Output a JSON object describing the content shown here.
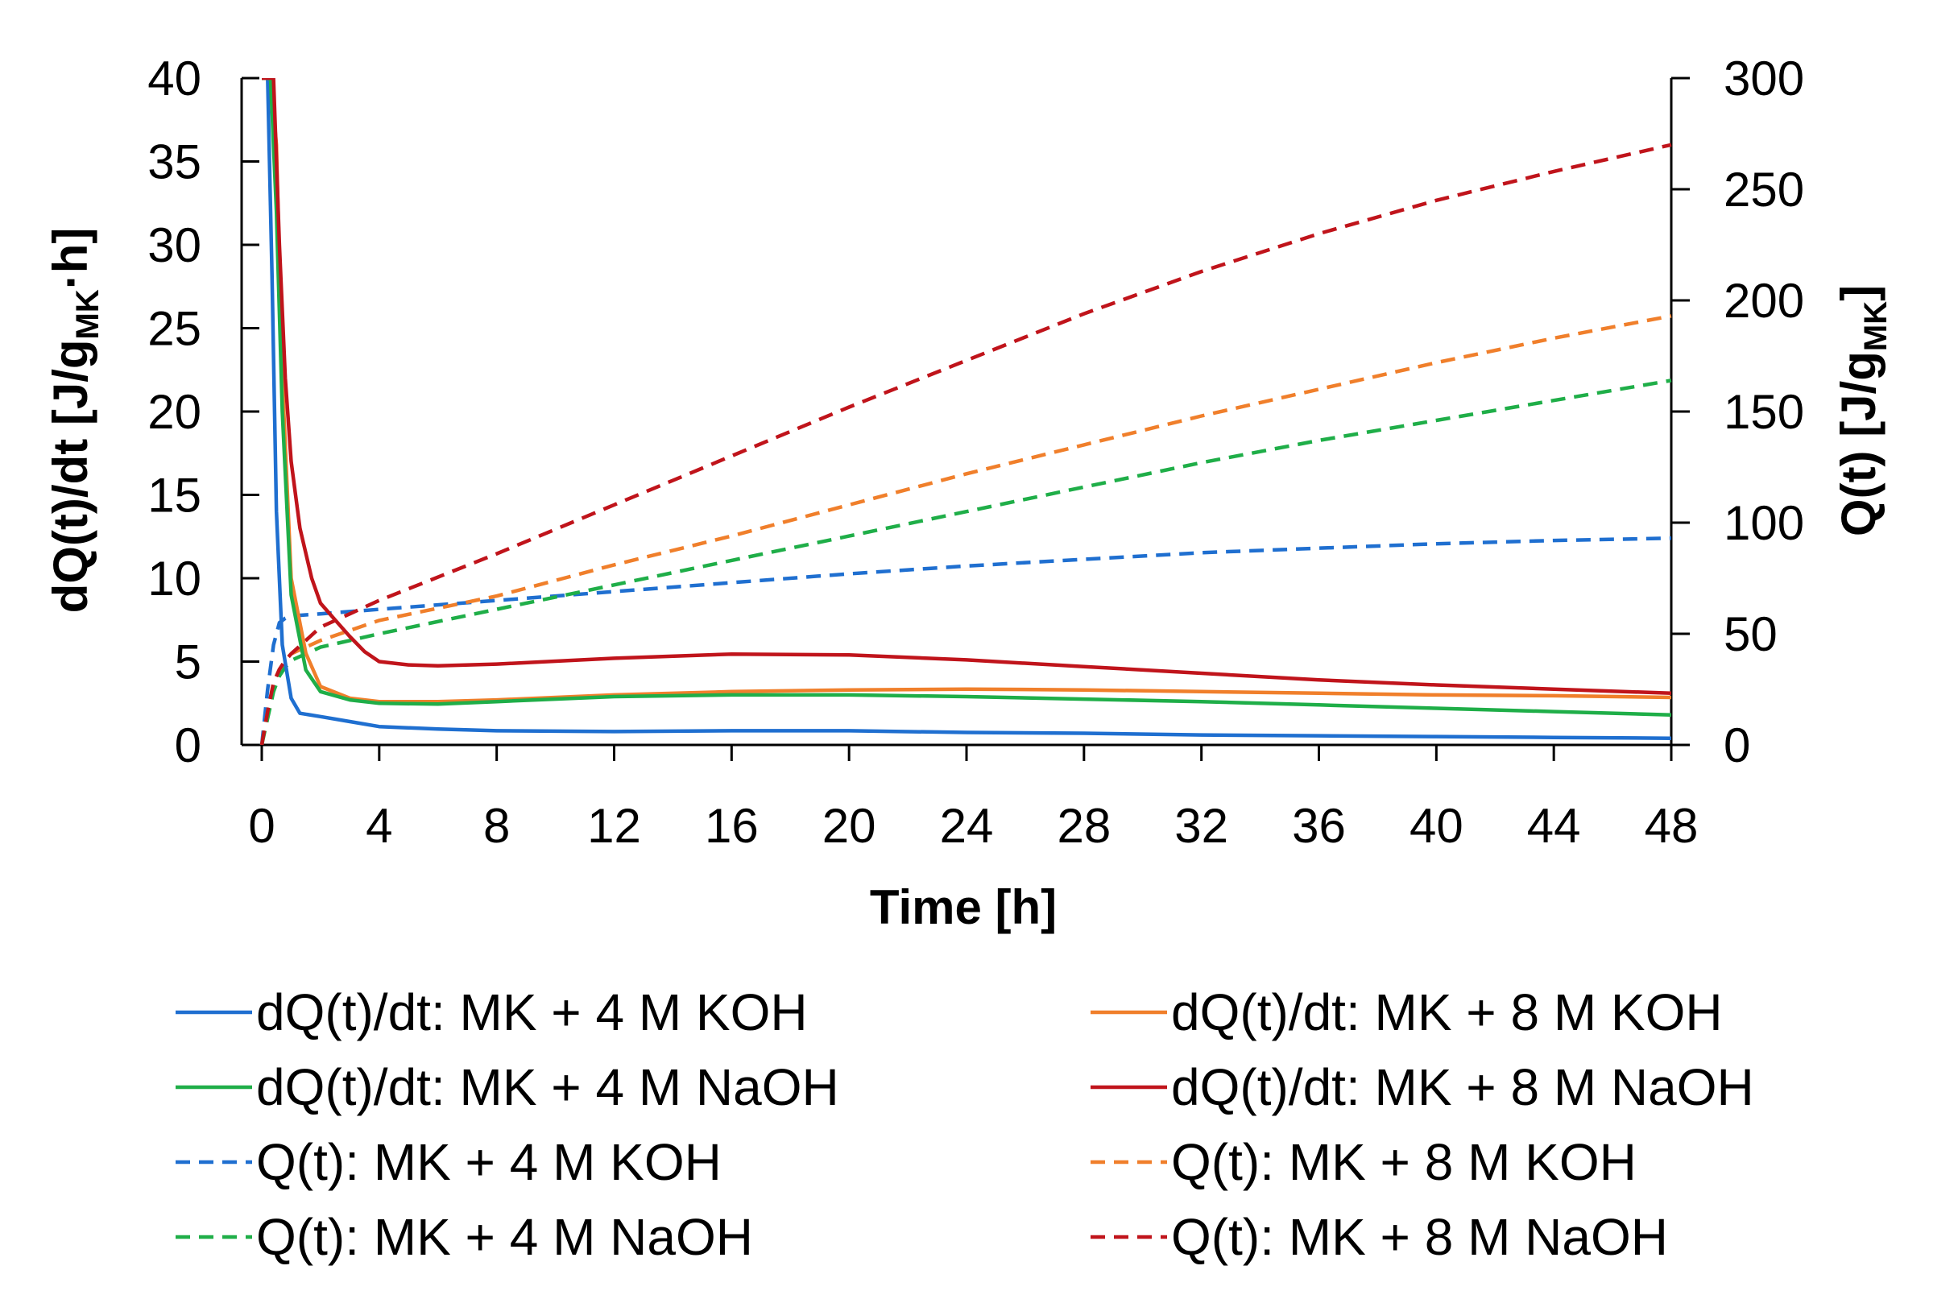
{
  "chart_data": {
    "type": "line",
    "xlabel": "Time [h]",
    "ylabel_left": {
      "main": "dQ(t)/dt [J/g",
      "sub": "MK",
      "suffix": "·h]"
    },
    "ylabel_right": {
      "main": "Q(t) [J/g",
      "sub": "MK",
      "suffix": "]"
    },
    "xlim": [
      0,
      48
    ],
    "xticks": [
      0,
      4,
      8,
      12,
      16,
      20,
      24,
      28,
      32,
      36,
      40,
      44,
      48
    ],
    "ylim_left": [
      0,
      40
    ],
    "yticks_left": [
      0,
      5,
      10,
      15,
      20,
      25,
      30,
      35,
      40
    ],
    "ylim_right": [
      0,
      300
    ],
    "yticks_right": [
      0,
      50,
      100,
      150,
      200,
      250,
      300
    ],
    "series": [
      {
        "name": "dQ(t)/dt: MK + 4 M KOH",
        "axis": "left",
        "style": "solid",
        "color": "#1f6fd0",
        "x": [
          0,
          0.2,
          0.35,
          0.5,
          0.7,
          1.0,
          1.3,
          2,
          3,
          4,
          6,
          8,
          12,
          16,
          20,
          24,
          28,
          32,
          36,
          40,
          44,
          48
        ],
        "y": [
          40,
          40,
          28,
          14,
          6,
          2.8,
          1.9,
          1.7,
          1.4,
          1.1,
          0.95,
          0.85,
          0.8,
          0.85,
          0.85,
          0.75,
          0.7,
          0.6,
          0.55,
          0.5,
          0.45,
          0.4
        ]
      },
      {
        "name": "dQ(t)/dt: MK + 8 M KOH",
        "axis": "left",
        "style": "solid",
        "color": "#f07f2b",
        "x": [
          0,
          0.3,
          0.5,
          0.7,
          1.0,
          1.5,
          2,
          3,
          4,
          6,
          8,
          12,
          16,
          20,
          24,
          28,
          32,
          36,
          40,
          44,
          48
        ],
        "y": [
          40,
          40,
          36,
          22,
          10,
          5.5,
          3.5,
          2.8,
          2.6,
          2.6,
          2.7,
          3.0,
          3.2,
          3.3,
          3.35,
          3.3,
          3.2,
          3.1,
          3.0,
          2.95,
          2.85
        ]
      },
      {
        "name": "dQ(t)/dt: MK + 4 M NaOH",
        "axis": "left",
        "style": "solid",
        "color": "#1fae48",
        "x": [
          0,
          0.3,
          0.5,
          0.7,
          1.0,
          1.5,
          2,
          3,
          4,
          6,
          8,
          12,
          16,
          20,
          24,
          28,
          32,
          36,
          40,
          44,
          48
        ],
        "y": [
          40,
          40,
          32,
          20,
          9,
          4.5,
          3.2,
          2.7,
          2.5,
          2.45,
          2.6,
          2.9,
          3.0,
          3.0,
          2.9,
          2.75,
          2.6,
          2.4,
          2.2,
          2.0,
          1.8
        ]
      },
      {
        "name": "dQ(t)/dt: MK + 8 M NaOH",
        "axis": "left",
        "style": "solid",
        "color": "#c0141b",
        "x": [
          0,
          0.4,
          0.6,
          0.8,
          1.0,
          1.3,
          1.7,
          2.0,
          2.5,
          3.0,
          3.5,
          4,
          5,
          6,
          8,
          12,
          16,
          20,
          24,
          28,
          32,
          36,
          40,
          44,
          48
        ],
        "y": [
          40,
          40,
          30,
          22,
          17,
          13,
          10,
          8.5,
          7.5,
          6.5,
          5.6,
          5.0,
          4.8,
          4.75,
          4.85,
          5.2,
          5.45,
          5.4,
          5.1,
          4.7,
          4.3,
          3.9,
          3.6,
          3.35,
          3.1
        ]
      },
      {
        "name": "Q(t): MK + 4 M KOH",
        "axis": "right",
        "style": "dashed",
        "color": "#1f6fd0",
        "x": [
          0,
          0.2,
          0.4,
          0.6,
          0.8,
          1.0,
          1.5,
          2,
          4,
          8,
          12,
          16,
          20,
          24,
          28,
          32,
          36,
          40,
          44,
          48
        ],
        "y": [
          0,
          25,
          45,
          55,
          57,
          58,
          58.5,
          59,
          61,
          65,
          69,
          73,
          77,
          80.5,
          83.5,
          86.5,
          88.5,
          90.5,
          92,
          93
        ]
      },
      {
        "name": "Q(t): MK + 8 M KOH",
        "axis": "right",
        "style": "dashed",
        "color": "#f07f2b",
        "x": [
          0,
          0.2,
          0.4,
          0.6,
          0.8,
          1.0,
          1.5,
          2,
          4,
          8,
          12,
          16,
          20,
          24,
          28,
          32,
          36,
          40,
          44,
          48
        ],
        "y": [
          0,
          15,
          28,
          34,
          38,
          41,
          44,
          47,
          56,
          67,
          81,
          94,
          108,
          122,
          135,
          148,
          160,
          172,
          183,
          193
        ]
      },
      {
        "name": "Q(t): MK + 4 M NaOH",
        "axis": "right",
        "style": "dashed",
        "color": "#1fae48",
        "x": [
          0,
          0.2,
          0.4,
          0.6,
          0.8,
          1.0,
          1.5,
          2,
          4,
          8,
          12,
          16,
          20,
          24,
          28,
          32,
          36,
          40,
          44,
          48
        ],
        "y": [
          0,
          12,
          24,
          31,
          35,
          38,
          41,
          44,
          50,
          61,
          72,
          83,
          94,
          105,
          116,
          127,
          137,
          146,
          155,
          164
        ]
      },
      {
        "name": "Q(t): MK + 8 M NaOH",
        "axis": "right",
        "style": "dashed",
        "color": "#c0141b",
        "x": [
          0,
          0.2,
          0.4,
          0.6,
          0.8,
          1.0,
          1.5,
          2,
          3,
          4,
          8,
          12,
          16,
          20,
          24,
          28,
          32,
          36,
          40,
          44,
          48
        ],
        "y": [
          0,
          15,
          28,
          34,
          38,
          41,
          47,
          53,
          59,
          65,
          86,
          108,
          130,
          152,
          173,
          194,
          213,
          230,
          245,
          258,
          270
        ]
      }
    ],
    "legend": {
      "placement": "bottom",
      "items": [
        {
          "label": "dQ(t)/dt: MK + 4 M KOH",
          "color": "#1f6fd0",
          "style": "solid"
        },
        {
          "label": "dQ(t)/dt: MK + 8 M KOH",
          "color": "#f07f2b",
          "style": "solid"
        },
        {
          "label": "dQ(t)/dt: MK + 4 M NaOH",
          "color": "#1fae48",
          "style": "solid"
        },
        {
          "label": "dQ(t)/dt: MK + 8 M NaOH",
          "color": "#c0141b",
          "style": "solid"
        },
        {
          "label": "Q(t): MK + 4 M KOH",
          "color": "#1f6fd0",
          "style": "dashed"
        },
        {
          "label": "Q(t): MK + 8 M KOH",
          "color": "#f07f2b",
          "style": "dashed"
        },
        {
          "label": "Q(t): MK + 4 M NaOH",
          "color": "#1fae48",
          "style": "dashed"
        },
        {
          "label": "Q(t): MK + 8 M NaOH",
          "color": "#c0141b",
          "style": "dashed"
        }
      ]
    }
  }
}
